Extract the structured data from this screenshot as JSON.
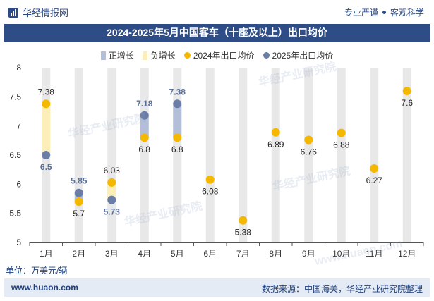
{
  "header": {
    "brand": "华经情报网",
    "tag1": "专业严谨",
    "tag2": "客观科学",
    "title": "2024-2025年5月中国客车（十座及以上）出口均价"
  },
  "footer": {
    "unit": "单位：万美元/辆",
    "site": "www.huaon.com",
    "source": "数据来源：中国海关，华经产业研究院整理"
  },
  "watermarks": [
    "华经产业研究院",
    "华经产业研究院",
    "华经产业研究院",
    "华经产业研究院",
    "www.huaon.com"
  ],
  "colors": {
    "title_bg": "#2e4d86",
    "increase": "#b3bfd9",
    "decrease": "#fbeeb8",
    "series2024": "#f5b800",
    "series2025": "#6a7da6",
    "column": "#e8e8e8"
  },
  "chart_data": {
    "type": "scatter",
    "categories": [
      "1月",
      "2月",
      "3月",
      "4月",
      "5月",
      "6月",
      "7月",
      "8月",
      "9月",
      "10月",
      "11月",
      "12月"
    ],
    "ylim": [
      5,
      8
    ],
    "yticks": [
      5,
      5.5,
      6,
      6.5,
      7,
      7.5,
      8
    ],
    "legend": [
      {
        "name": "正增长",
        "kind": "increase"
      },
      {
        "name": "负增长",
        "kind": "decrease"
      },
      {
        "name": "2024年出口均价",
        "kind": "series2024"
      },
      {
        "name": "2025年出口均价",
        "kind": "series2025"
      }
    ],
    "series": [
      {
        "name": "2024年出口均价",
        "values": [
          7.38,
          5.7,
          6.03,
          6.8,
          6.8,
          6.08,
          5.38,
          6.89,
          6.76,
          6.88,
          6.27,
          7.6
        ]
      },
      {
        "name": "2025年出口均价",
        "values": [
          6.5,
          5.85,
          5.73,
          7.18,
          7.38,
          null,
          null,
          null,
          null,
          null,
          null,
          null
        ]
      }
    ]
  }
}
